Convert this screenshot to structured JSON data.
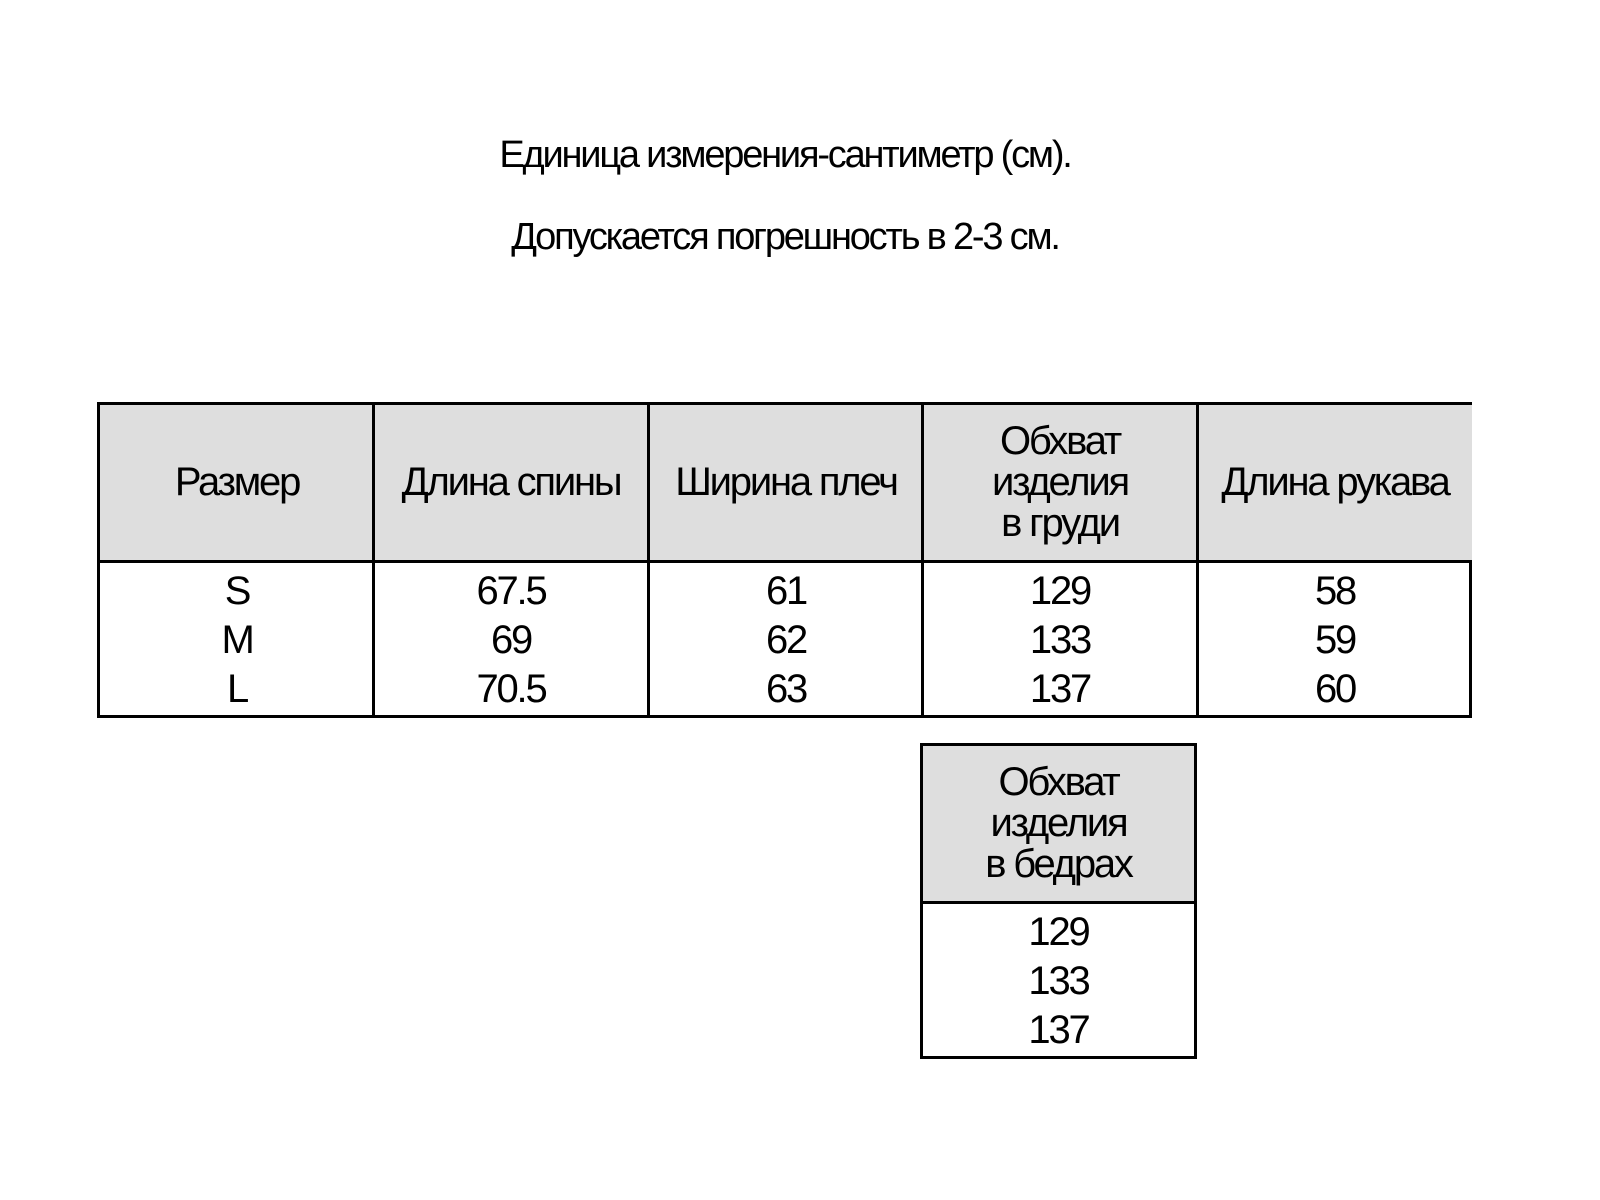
{
  "notes": {
    "unit": "Единица измерения-сантиметр (см).",
    "tolerance": "Допускается погрешность в 2-3 см."
  },
  "main_table": {
    "columns": [
      {
        "header": [
          "Размер"
        ],
        "values": [
          "S",
          "M",
          "L"
        ]
      },
      {
        "header": [
          "Длина спины"
        ],
        "values": [
          "67.5",
          "69",
          "70.5"
        ]
      },
      {
        "header": [
          "Ширина плеч"
        ],
        "values": [
          "61",
          "62",
          "63"
        ]
      },
      {
        "header": [
          "Обхват",
          "изделия",
          "в груди"
        ],
        "values": [
          "129",
          "133",
          "137"
        ]
      },
      {
        "header": [
          "Длина рукава"
        ],
        "values": [
          "58",
          "59",
          "60"
        ]
      }
    ]
  },
  "hip_table": {
    "header": [
      "Обхват",
      "изделия",
      "в бедрах"
    ],
    "values": [
      "129",
      "133",
      "137"
    ]
  },
  "colors": {
    "header_bg": "#dedede",
    "border": "#000000"
  }
}
